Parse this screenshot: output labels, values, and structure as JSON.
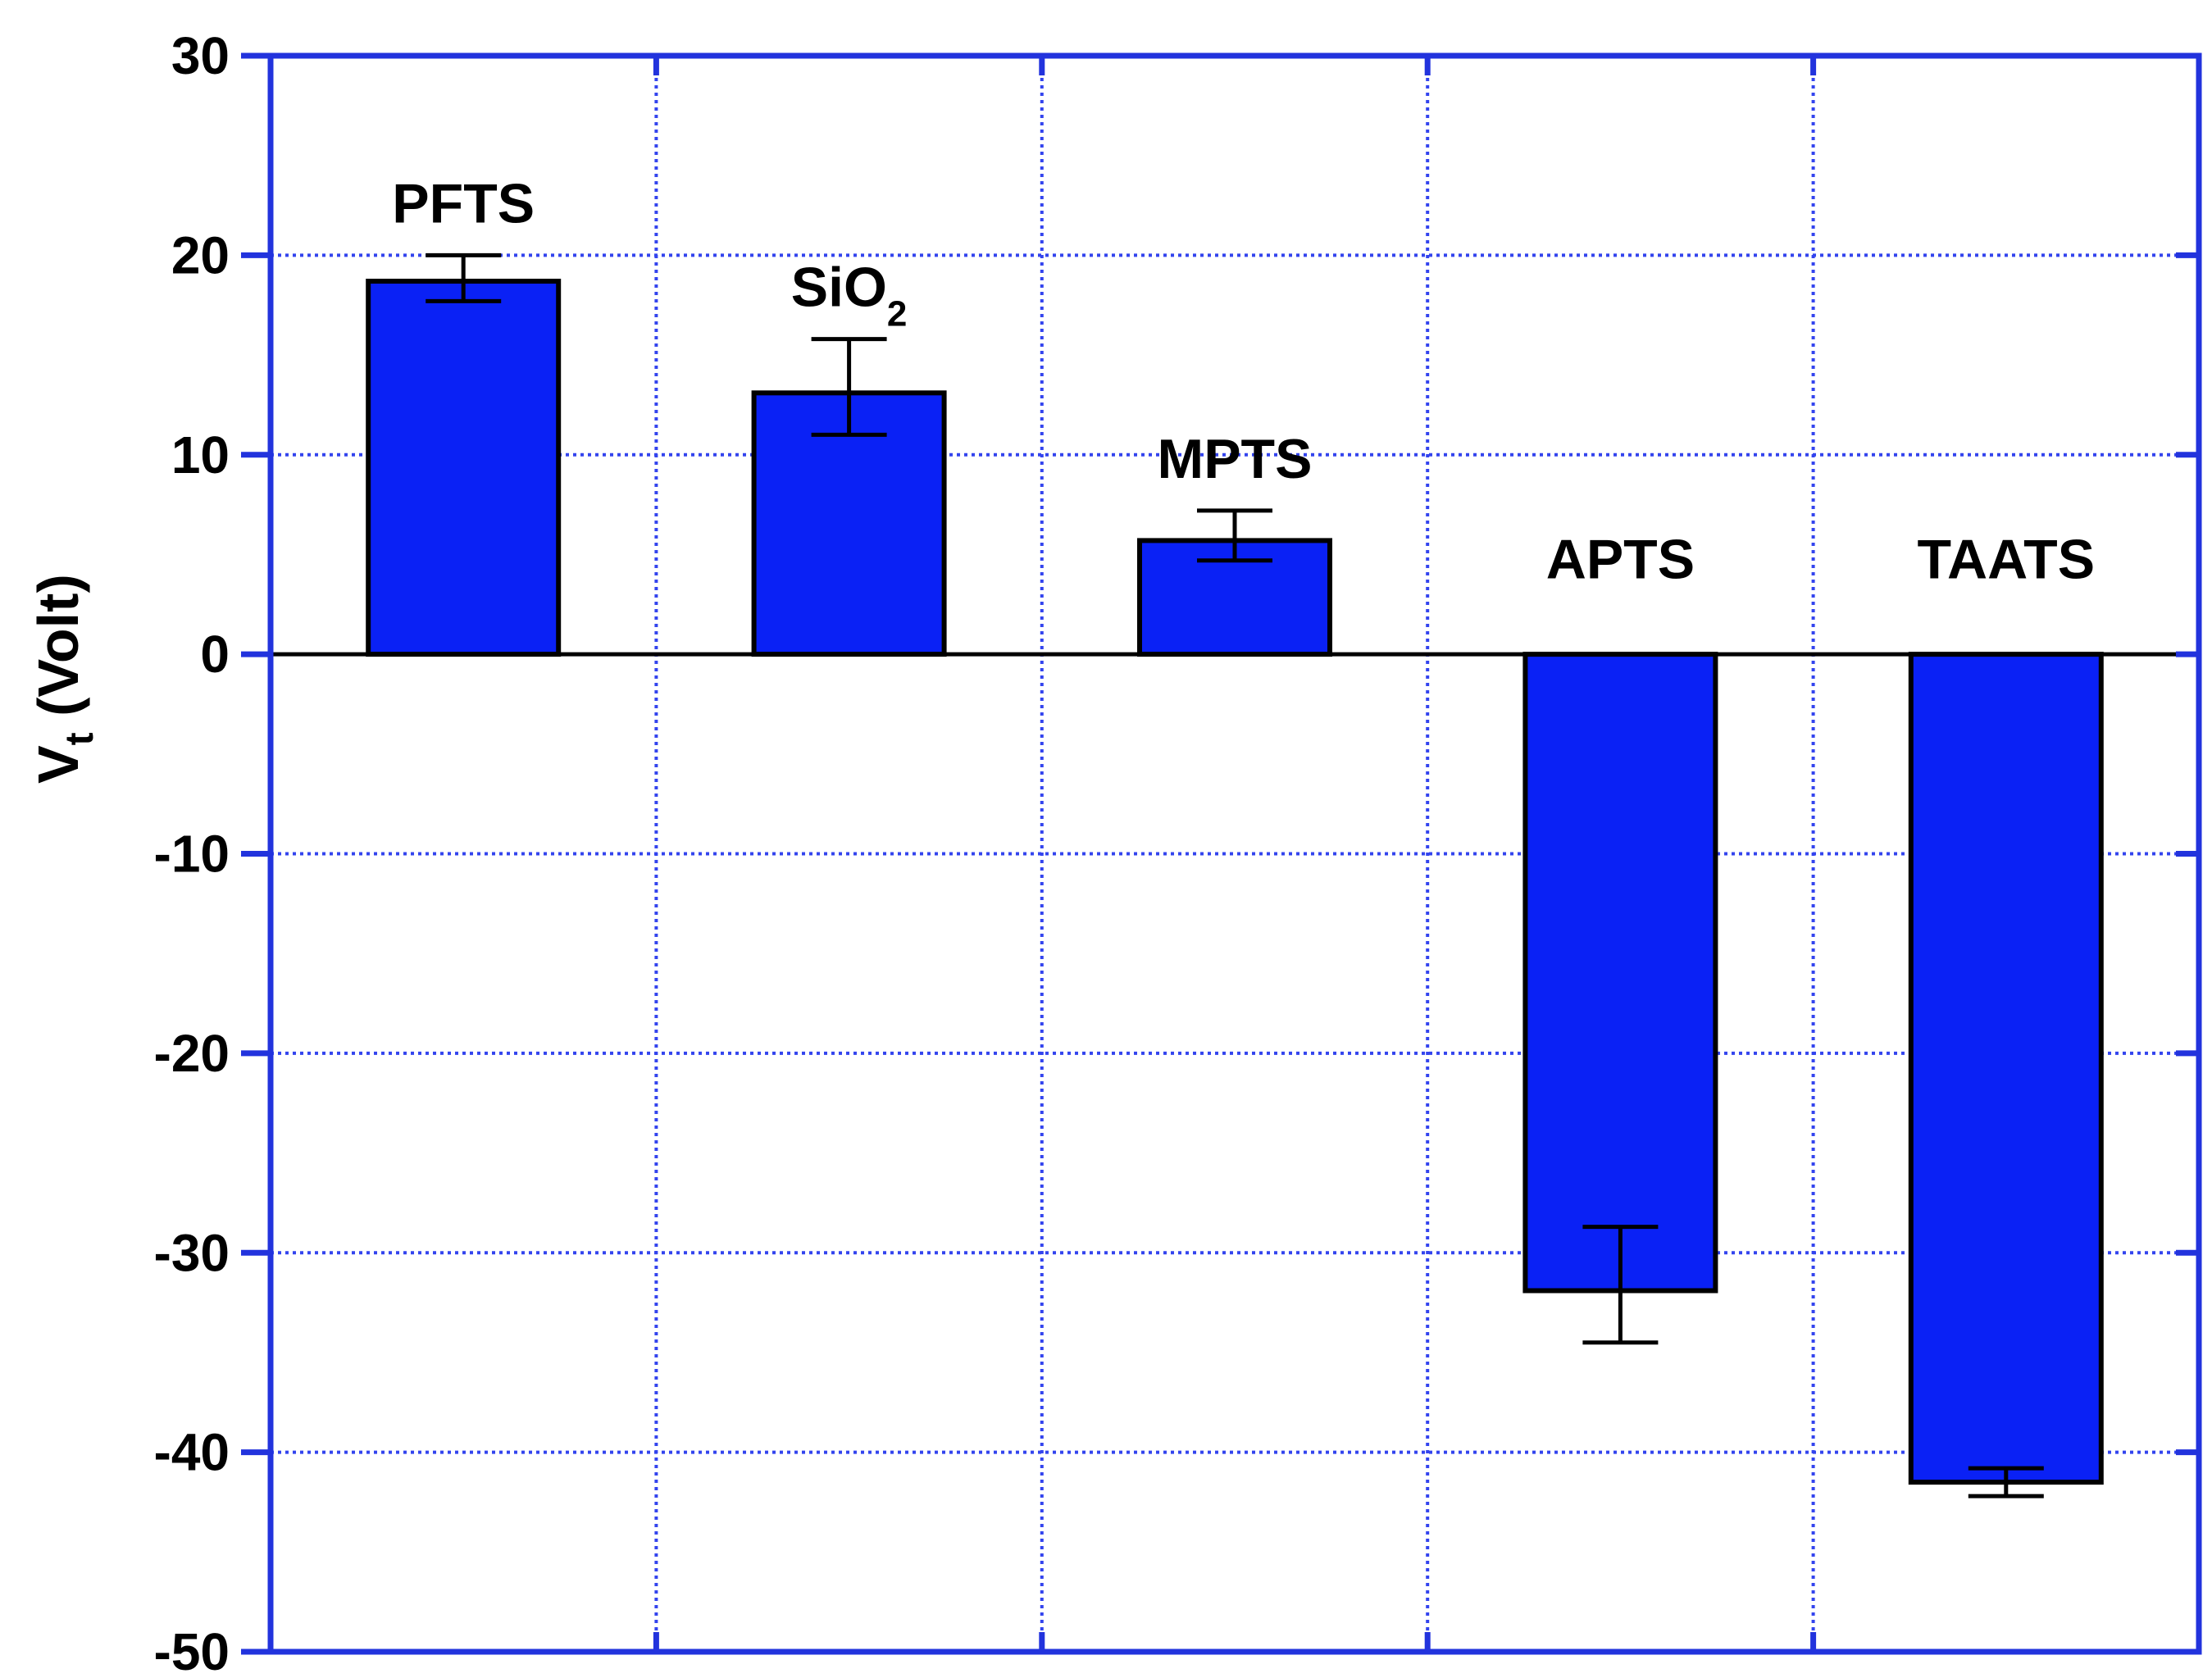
{
  "chart_data": {
    "type": "bar",
    "categories": [
      "PFTS",
      "SiO2",
      "MPTS",
      "APTS",
      "TAATS"
    ],
    "values": [
      18.7,
      13.1,
      5.7,
      -31.9,
      -41.5
    ],
    "error_low": [
      17.7,
      11.0,
      4.7,
      -34.5,
      -42.2
    ],
    "error_high": [
      20.0,
      15.8,
      7.2,
      -28.7,
      -40.8
    ],
    "bar_labels": [
      {
        "main": "PFTS",
        "sub": ""
      },
      {
        "main": "SiO",
        "sub": "2"
      },
      {
        "main": "MPTS",
        "sub": ""
      },
      {
        "main": "APTS",
        "sub": ""
      },
      {
        "main": "TAATS",
        "sub": ""
      }
    ],
    "ylabel": {
      "main": "V",
      "sub": "t",
      "rest": " (Volt)"
    },
    "ylim": [
      -50,
      30
    ],
    "yticks": [
      30,
      20,
      10,
      0,
      -10,
      -20,
      -30,
      -40,
      -50
    ],
    "grid": true,
    "colors": {
      "bar": "#0a21f5",
      "frame": "#2233dd",
      "grid": "#3344ee",
      "edge": "#000000"
    }
  }
}
